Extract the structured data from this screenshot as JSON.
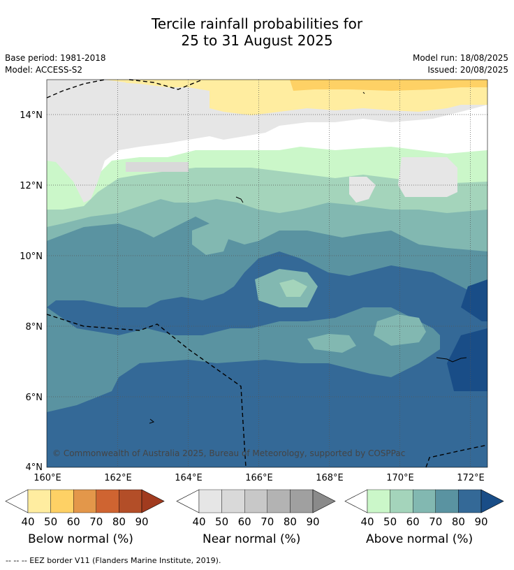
{
  "title_line1": "Tercile rainfall probabilities for",
  "title_line2": "25 to 31 August 2025",
  "meta": {
    "base_period": "Base period: 1981-2018",
    "model": "Model: ACCESS-S2",
    "model_run": "Model run: 18/08/2025",
    "issued": "Issued: 20/08/2025"
  },
  "map": {
    "lon_ticks": [
      "160°E",
      "162°E",
      "164°E",
      "166°E",
      "168°E",
      "170°E",
      "172°E"
    ],
    "lat_ticks": [
      "14°N",
      "12°N",
      "10°N",
      "8°N",
      "6°N",
      "4°N"
    ],
    "lon_range": [
      160,
      172.5
    ],
    "lat_range": [
      4,
      15
    ],
    "copyright": "© Commonwealth of Australia 2025, Bureau of Meteorology, supported by COSPPac"
  },
  "colorbars": [
    {
      "label": "Below normal (%)",
      "ticks": [
        "40",
        "50",
        "60",
        "70",
        "80",
        "90"
      ],
      "colors": [
        "#ffffff",
        "#ffeda0",
        "#fed165",
        "#e3974a",
        "#cf6431",
        "#b34e28",
        "#a13b1f"
      ]
    },
    {
      "label": "Near normal (%)",
      "ticks": [
        "40",
        "50",
        "60",
        "70",
        "80",
        "90"
      ],
      "colors": [
        "#ffffff",
        "#e6e6e6",
        "#d9d9d9",
        "#c8c8c8",
        "#b3b3b3",
        "#a0a0a0",
        "#8a8a8a"
      ]
    },
    {
      "label": "Above normal (%)",
      "ticks": [
        "40",
        "50",
        "60",
        "70",
        "80",
        "90"
      ],
      "colors": [
        "#ffffff",
        "#cbf7c9",
        "#a4d4bb",
        "#82b8b1",
        "#5a93a1",
        "#346997",
        "#194d87"
      ]
    }
  ],
  "footnote": "-- -- -- EEZ border V11 (Flanders Marine Institute, 2019)."
}
